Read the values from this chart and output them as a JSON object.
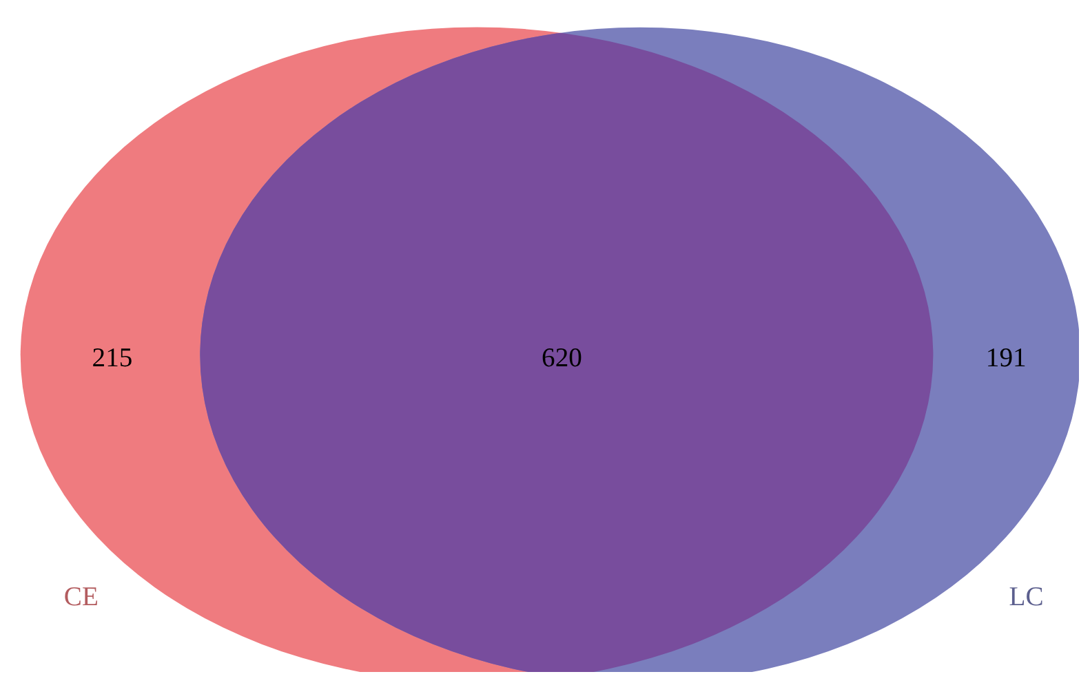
{
  "chart_data": {
    "type": "other",
    "categories": [
      null,
      null,
      null
    ],
    "values": [
      215,
      620,
      191
    ],
    "colors": [
      "#ef7b7f",
      "#784d9d",
      "#7a7ebd"
    ],
    "data_labels": true,
    "annotations": [
      "CE",
      "LC"
    ]
  }
}
